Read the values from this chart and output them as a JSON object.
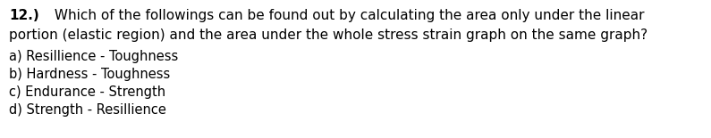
{
  "background_color": "#ffffff",
  "question_number_bold": "12.)",
  "question_line1": " Which of the followings can be found out by calculating the area only under the linear",
  "question_line2": "portion (elastic region) and the area under the whole stress strain graph on the same graph?",
  "options": [
    "a) Resillience - Toughness",
    "b) Hardness - Toughness",
    "c) Endurance - Strength",
    "d) Strength - Resillience"
  ],
  "font_family": "DejaVu Sans",
  "question_fontsize": 11.0,
  "option_fontsize": 10.5,
  "text_color": "#000000",
  "fig_width": 7.95,
  "fig_height": 1.55,
  "dpi": 100
}
